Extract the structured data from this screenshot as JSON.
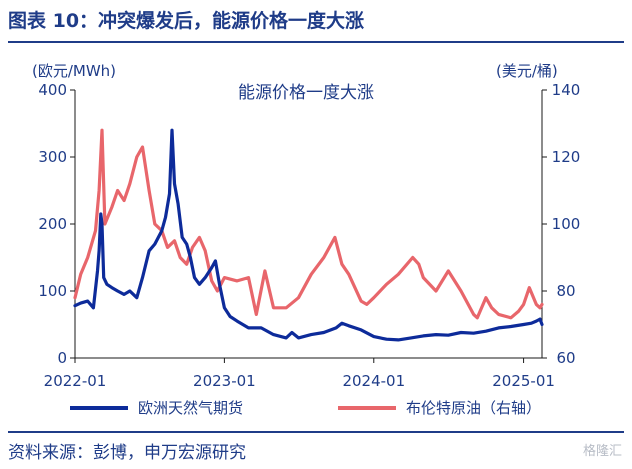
{
  "figure": {
    "title": "图表 10：冲突爆发后，能源价格一度大涨",
    "source": "资料来源：彭博，申万宏源研究",
    "watermark": "格隆汇"
  },
  "colors": {
    "gas": "#0d2b9a",
    "oil": "#e8666b",
    "text": "#1f3c88"
  },
  "chart_data": {
    "type": "line",
    "title": "能源价格一度大涨",
    "y_left_label": "(欧元/MWh)",
    "y_right_label": "(美元/桶)",
    "y_left_range": [
      0,
      400
    ],
    "y_right_range": [
      60,
      140
    ],
    "y_left_ticks": [
      "0",
      "100",
      "200",
      "300",
      "400"
    ],
    "y_right_ticks": [
      "60",
      "80",
      "100",
      "120",
      "140"
    ],
    "x_range": [
      "2022-01-01",
      "2025-02-15"
    ],
    "x_ticks": [
      {
        "date": "2022-01-01",
        "label": "2022-01"
      },
      {
        "date": "2023-01-01",
        "label": "2023-01"
      },
      {
        "date": "2024-01-01",
        "label": "2024-01"
      },
      {
        "date": "2025-01-01",
        "label": "2025-01"
      }
    ],
    "grid": false,
    "legend_position": "bottom",
    "series": [
      {
        "name": "欧洲天然气期货",
        "axis": "left",
        "points": [
          [
            "2022-01-01",
            78
          ],
          [
            "2022-01-15",
            82
          ],
          [
            "2022-02-01",
            85
          ],
          [
            "2022-02-15",
            75
          ],
          [
            "2022-02-25",
            130
          ],
          [
            "2022-03-01",
            160
          ],
          [
            "2022-03-05",
            215
          ],
          [
            "2022-03-08",
            200
          ],
          [
            "2022-03-12",
            120
          ],
          [
            "2022-03-20",
            110
          ],
          [
            "2022-04-01",
            105
          ],
          [
            "2022-04-15",
            100
          ],
          [
            "2022-05-01",
            95
          ],
          [
            "2022-05-15",
            100
          ],
          [
            "2022-06-01",
            90
          ],
          [
            "2022-06-15",
            120
          ],
          [
            "2022-07-01",
            160
          ],
          [
            "2022-07-15",
            170
          ],
          [
            "2022-08-01",
            190
          ],
          [
            "2022-08-10",
            210
          ],
          [
            "2022-08-20",
            245
          ],
          [
            "2022-08-26",
            340
          ],
          [
            "2022-09-01",
            260
          ],
          [
            "2022-09-10",
            230
          ],
          [
            "2022-09-20",
            180
          ],
          [
            "2022-10-01",
            170
          ],
          [
            "2022-10-10",
            150
          ],
          [
            "2022-10-20",
            120
          ],
          [
            "2022-11-01",
            110
          ],
          [
            "2022-11-15",
            120
          ],
          [
            "2022-12-01",
            135
          ],
          [
            "2022-12-10",
            145
          ],
          [
            "2022-12-20",
            110
          ],
          [
            "2023-01-01",
            75
          ],
          [
            "2023-01-15",
            62
          ],
          [
            "2023-02-01",
            55
          ],
          [
            "2023-03-01",
            45
          ],
          [
            "2023-04-01",
            45
          ],
          [
            "2023-05-01",
            35
          ],
          [
            "2023-06-01",
            30
          ],
          [
            "2023-06-15",
            38
          ],
          [
            "2023-07-01",
            30
          ],
          [
            "2023-08-01",
            35
          ],
          [
            "2023-09-01",
            38
          ],
          [
            "2023-10-01",
            45
          ],
          [
            "2023-10-15",
            52
          ],
          [
            "2023-11-01",
            48
          ],
          [
            "2023-12-01",
            42
          ],
          [
            "2024-01-01",
            32
          ],
          [
            "2024-02-01",
            28
          ],
          [
            "2024-03-01",
            27
          ],
          [
            "2024-04-01",
            30
          ],
          [
            "2024-05-01",
            33
          ],
          [
            "2024-06-01",
            35
          ],
          [
            "2024-07-01",
            34
          ],
          [
            "2024-08-01",
            38
          ],
          [
            "2024-09-01",
            37
          ],
          [
            "2024-10-01",
            40
          ],
          [
            "2024-11-01",
            45
          ],
          [
            "2024-12-01",
            47
          ],
          [
            "2025-01-01",
            50
          ],
          [
            "2025-01-20",
            52
          ],
          [
            "2025-02-01",
            55
          ],
          [
            "2025-02-10",
            58
          ],
          [
            "2025-02-15",
            50
          ]
        ]
      },
      {
        "name": "布伦特原油（右轴）",
        "axis": "right",
        "points": [
          [
            "2022-01-01",
            78
          ],
          [
            "2022-01-15",
            85
          ],
          [
            "2022-02-01",
            90
          ],
          [
            "2022-02-20",
            98
          ],
          [
            "2022-03-01",
            110
          ],
          [
            "2022-03-08",
            128
          ],
          [
            "2022-03-15",
            100
          ],
          [
            "2022-04-01",
            105
          ],
          [
            "2022-04-15",
            110
          ],
          [
            "2022-05-01",
            107
          ],
          [
            "2022-05-15",
            112
          ],
          [
            "2022-06-01",
            120
          ],
          [
            "2022-06-15",
            123
          ],
          [
            "2022-07-01",
            110
          ],
          [
            "2022-07-15",
            100
          ],
          [
            "2022-08-01",
            98
          ],
          [
            "2022-08-15",
            93
          ],
          [
            "2022-09-01",
            95
          ],
          [
            "2022-09-15",
            90
          ],
          [
            "2022-10-01",
            88
          ],
          [
            "2022-10-15",
            93
          ],
          [
            "2022-11-01",
            96
          ],
          [
            "2022-11-15",
            92
          ],
          [
            "2022-12-01",
            83
          ],
          [
            "2022-12-15",
            80
          ],
          [
            "2023-01-01",
            84
          ],
          [
            "2023-02-01",
            83
          ],
          [
            "2023-03-01",
            84
          ],
          [
            "2023-03-20",
            73
          ],
          [
            "2023-04-10",
            86
          ],
          [
            "2023-05-01",
            75
          ],
          [
            "2023-06-01",
            75
          ],
          [
            "2023-07-01",
            78
          ],
          [
            "2023-08-01",
            85
          ],
          [
            "2023-09-01",
            90
          ],
          [
            "2023-09-28",
            96
          ],
          [
            "2023-10-15",
            88
          ],
          [
            "2023-11-01",
            85
          ],
          [
            "2023-12-01",
            77
          ],
          [
            "2023-12-15",
            76
          ],
          [
            "2024-01-01",
            78
          ],
          [
            "2024-02-01",
            82
          ],
          [
            "2024-03-01",
            85
          ],
          [
            "2024-04-05",
            90
          ],
          [
            "2024-04-20",
            88
          ],
          [
            "2024-05-01",
            84
          ],
          [
            "2024-06-01",
            80
          ],
          [
            "2024-07-01",
            86
          ],
          [
            "2024-08-01",
            80
          ],
          [
            "2024-09-01",
            73
          ],
          [
            "2024-09-10",
            72
          ],
          [
            "2024-10-01",
            78
          ],
          [
            "2024-10-15",
            75
          ],
          [
            "2024-11-01",
            73
          ],
          [
            "2024-12-01",
            72
          ],
          [
            "2024-12-20",
            74
          ],
          [
            "2025-01-01",
            76
          ],
          [
            "2025-01-15",
            81
          ],
          [
            "2025-02-01",
            76
          ],
          [
            "2025-02-10",
            75
          ],
          [
            "2025-02-15",
            76
          ]
        ]
      }
    ]
  }
}
